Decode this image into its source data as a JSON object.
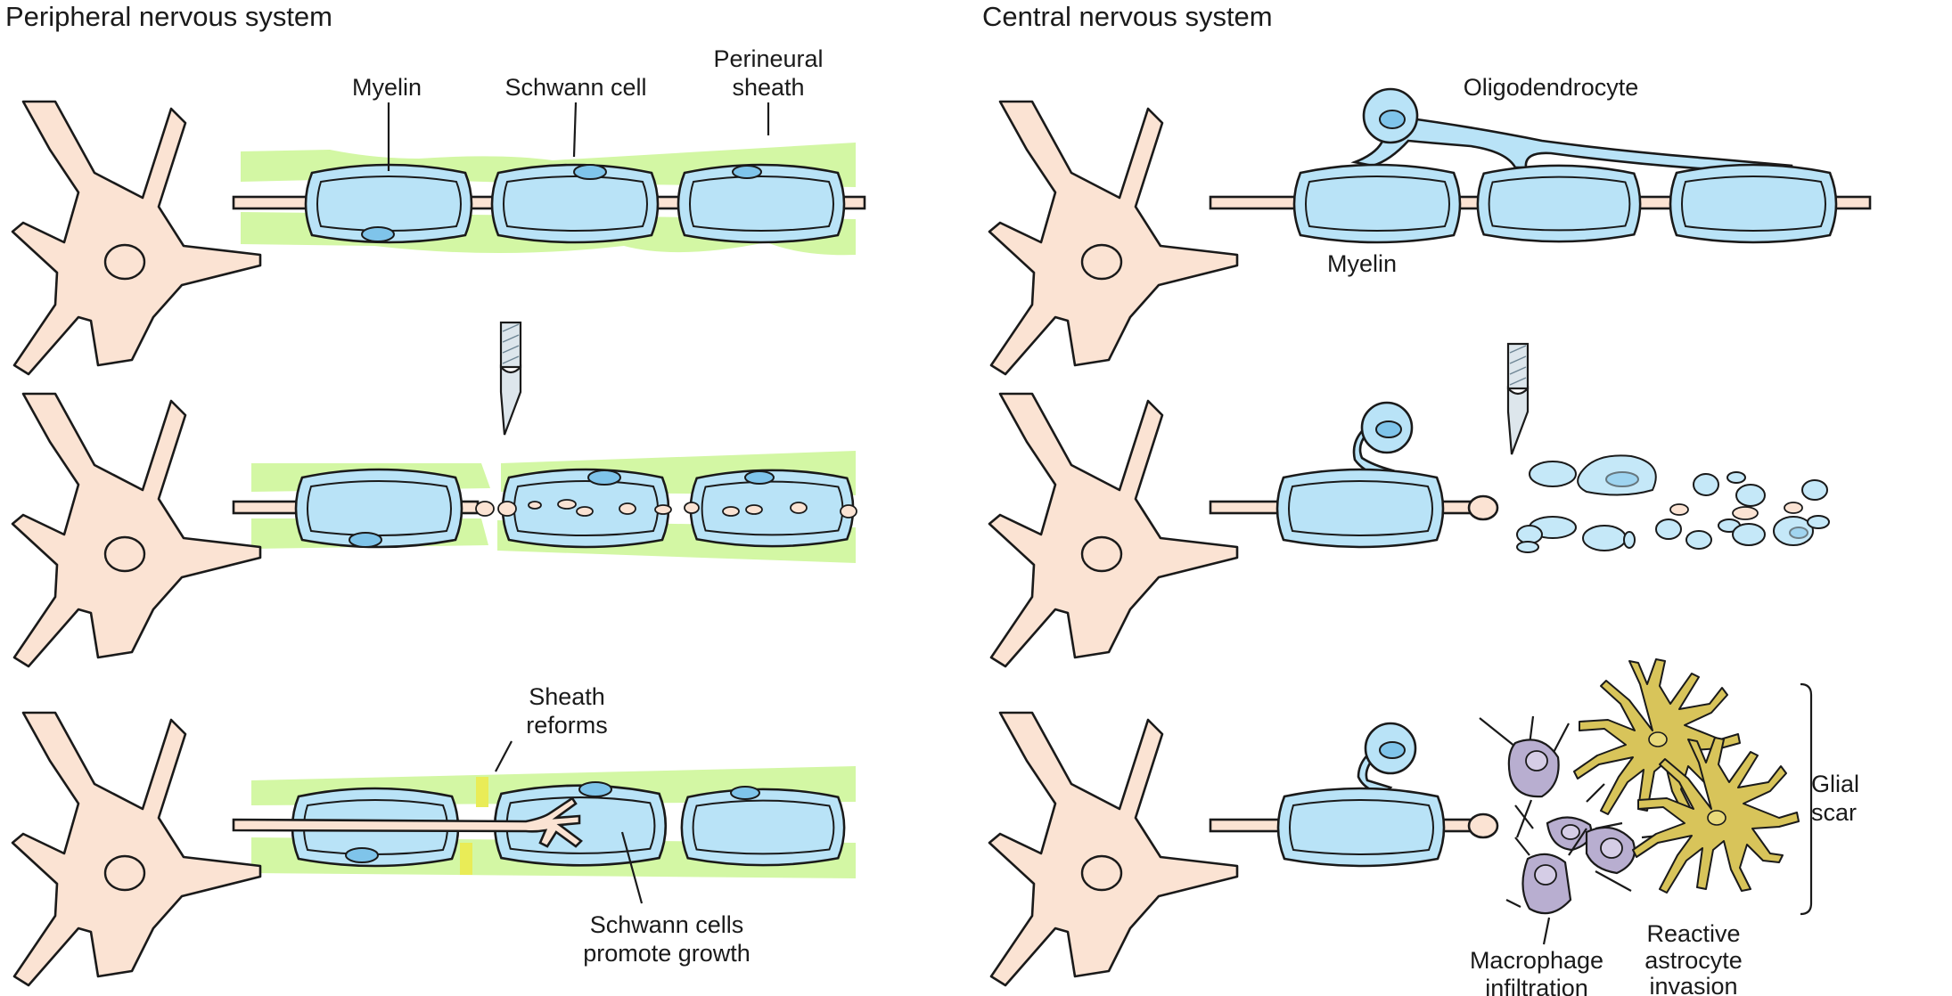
{
  "peripheral": {
    "title": "Peripheral nervous system",
    "labels": {
      "myelin": "Myelin",
      "schwann_cell": "Schwann cell",
      "perineural_sheath_1": "Perineural",
      "perineural_sheath_2": "sheath",
      "sheath_reforms_1": "Sheath",
      "sheath_reforms_2": "reforms",
      "schwann_growth_1": "Schwann cells",
      "schwann_growth_2": "promote growth"
    }
  },
  "central": {
    "title": "Central nervous system",
    "labels": {
      "oligodendrocyte": "Oligodendrocyte",
      "myelin": "Myelin",
      "glial_scar_1": "Glial",
      "glial_scar_2": "scar",
      "macrophage_1": "Macrophage",
      "macrophage_2": "infiltration",
      "astrocyte_1": "Reactive",
      "astrocyte_2": "astrocyte",
      "astrocyte_3": "invasion"
    }
  },
  "colors": {
    "neuron": "#fbe3d3",
    "myelin": "#b9e3f7",
    "sheath": "#d3f7a4",
    "sheath_reformed": "#e9ec57",
    "astrocyte": "#d8c45a",
    "macrophage": "#b8aed0"
  }
}
